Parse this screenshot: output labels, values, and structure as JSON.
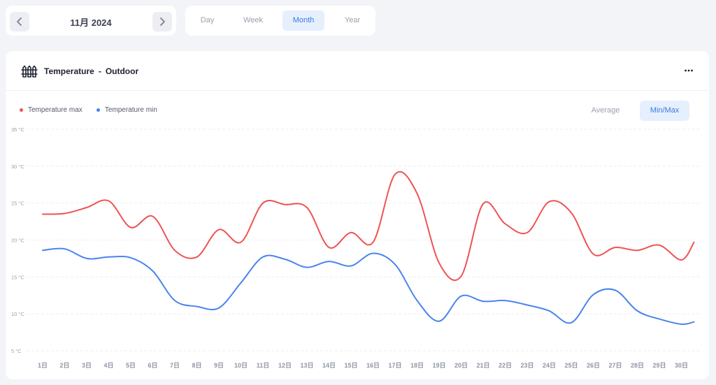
{
  "month_nav": {
    "label": "11月 2024"
  },
  "range_tabs": [
    {
      "label": "Day",
      "active": false
    },
    {
      "label": "Week",
      "active": false
    },
    {
      "label": "Month",
      "active": true
    },
    {
      "label": "Year",
      "active": false
    }
  ],
  "card": {
    "title": "Temperature",
    "separator": "-",
    "subtitle": "Outdoor"
  },
  "view_toggle": {
    "average": "Average",
    "minmax": "Min/Max",
    "active": "minmax"
  },
  "colors": {
    "max": "#f05252",
    "min": "#4a84ec",
    "accent": "#3b7ae0"
  },
  "chart_data": {
    "type": "line",
    "x": [
      "1日",
      "2日",
      "3日",
      "4日",
      "5日",
      "6日",
      "7日",
      "8日",
      "9日",
      "10日",
      "11日",
      "12日",
      "13日",
      "14日",
      "15日",
      "16日",
      "17日",
      "18日",
      "19日",
      "20日",
      "21日",
      "22日",
      "23日",
      "24日",
      "25日",
      "26日",
      "27日",
      "28日",
      "29日",
      "30日"
    ],
    "series": [
      {
        "name": "Temperature max",
        "color": "#f05252",
        "values": [
          23.5,
          23.6,
          24.4,
          25.3,
          21.7,
          23.2,
          18.6,
          17.7,
          21.4,
          19.7,
          25.0,
          24.8,
          24.4,
          19.0,
          21.0,
          19.7,
          28.9,
          26.3,
          16.9,
          15.1,
          24.9,
          22.2,
          21.0,
          25.2,
          23.7,
          18.1,
          19.0,
          18.6,
          19.3,
          17.3
        ]
      },
      {
        "name": "Temperature min",
        "color": "#4a84ec",
        "values": [
          18.6,
          18.8,
          17.5,
          17.7,
          17.6,
          15.8,
          11.8,
          11.0,
          10.8,
          14.2,
          17.7,
          17.4,
          16.3,
          17.1,
          16.5,
          18.2,
          16.7,
          11.8,
          9.0,
          12.4,
          11.7,
          11.8,
          11.2,
          10.4,
          8.8,
          12.6,
          13.2,
          10.4,
          9.3,
          8.6
        ]
      }
    ],
    "y_ticks": [
      "5 °C",
      "10 °C",
      "15 °C",
      "20 °C",
      "25 °C",
      "30 °C",
      "35 °C"
    ],
    "y_tick_values": [
      5,
      10,
      15,
      20,
      25,
      30,
      35
    ],
    "ylim": [
      5,
      35
    ],
    "grid": true,
    "legend_position": "top-left"
  }
}
